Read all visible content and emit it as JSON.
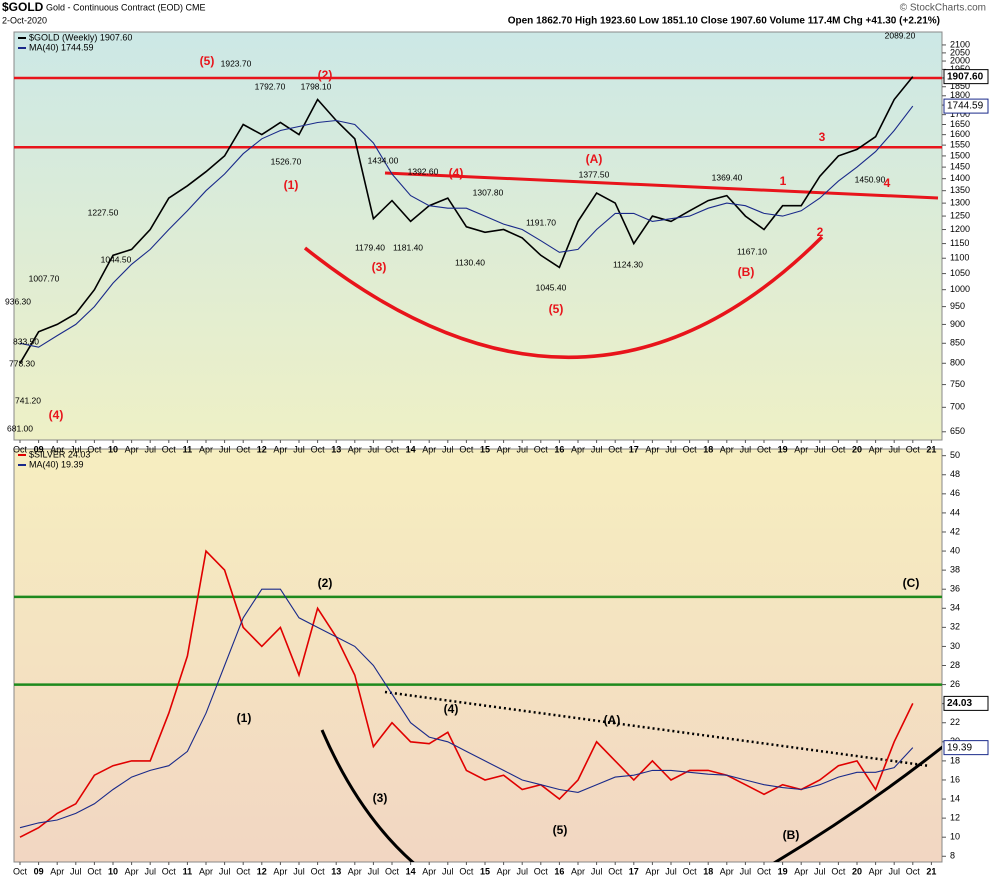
{
  "header": {
    "symbol": "$GOLD",
    "description": "Gold - Continuous Contract (EOD) CME",
    "date": "2-Oct-2020",
    "quote": "Open 1862.70 High 1923.60 Low 1851.10 Close 1907.60 Volume 117.4M Chg +41.30 (+2.21%)",
    "credit": "© StockCharts.com"
  },
  "chart_data": [
    {
      "type": "line",
      "log_scale": true,
      "categories": [
        "Oct",
        "09",
        "Apr",
        "Jul",
        "Oct",
        "10",
        "Apr",
        "Jul",
        "Oct",
        "11",
        "Apr",
        "Jul",
        "Oct",
        "12",
        "Apr",
        "Jul",
        "Oct",
        "13",
        "Apr",
        "Jul",
        "Oct",
        "14",
        "Apr",
        "Jul",
        "Oct",
        "15",
        "Apr",
        "Jul",
        "Oct",
        "16",
        "Apr",
        "Jul",
        "Oct",
        "17",
        "Apr",
        "Jul",
        "Oct",
        "18",
        "Apr",
        "Jul",
        "Oct",
        "19",
        "Apr",
        "Jul",
        "Oct",
        "20",
        "Apr",
        "Jul",
        "Oct",
        "21"
      ],
      "series": [
        {
          "name": "$GOLD (Weekly) 1907.60",
          "color": "#000000",
          "last_label": "1907.60",
          "values": [
            800,
            880,
            900,
            930,
            1000,
            1110,
            1130,
            1200,
            1320,
            1370,
            1430,
            1500,
            1650,
            1600,
            1660,
            1600,
            1780,
            1670,
            1580,
            1240,
            1310,
            1230,
            1290,
            1320,
            1210,
            1190,
            1200,
            1170,
            1110,
            1070,
            1230,
            1340,
            1300,
            1150,
            1250,
            1230,
            1270,
            1310,
            1330,
            1250,
            1200,
            1290,
            1290,
            1410,
            1500,
            1530,
            1590,
            1780,
            1907.6,
            null
          ]
        },
        {
          "name": "MA(40) 1744.59",
          "color": "#1a2a8a",
          "last_label": "1744.59",
          "values": [
            850,
            840,
            870,
            900,
            950,
            1020,
            1080,
            1130,
            1200,
            1270,
            1350,
            1420,
            1510,
            1580,
            1620,
            1640,
            1660,
            1670,
            1650,
            1560,
            1420,
            1330,
            1290,
            1280,
            1280,
            1250,
            1220,
            1200,
            1160,
            1120,
            1130,
            1200,
            1260,
            1260,
            1230,
            1240,
            1250,
            1280,
            1300,
            1290,
            1260,
            1250,
            1270,
            1320,
            1390,
            1450,
            1520,
            1620,
            1744.59,
            null
          ]
        }
      ],
      "ylim": [
        634,
        2184
      ],
      "yticks": [
        650,
        700,
        750,
        800,
        850,
        900,
        950,
        1000,
        1050,
        1100,
        1150,
        1200,
        1250,
        1300,
        1350,
        1400,
        1450,
        1500,
        1550,
        1600,
        1650,
        1700,
        1750,
        1800,
        1850,
        1900,
        1950,
        2000,
        2050,
        2100
      ],
      "levels": [
        {
          "value": 1900,
          "color": "#e8141b"
        },
        {
          "value": 1540,
          "color": "#e8141b"
        }
      ],
      "annotations": [
        "(5)",
        "1923.70",
        "1792.70",
        "(2)",
        "1798.10",
        "1526.70",
        "(1)",
        "1434.00",
        "1392.60",
        "(4)",
        "1179.40",
        "1181.40",
        "(3)",
        "1307.80",
        "1130.40",
        "1191.70",
        "1045.40",
        "(5)",
        "(A)",
        "1377.50",
        "1124.30",
        "1369.40",
        "1167.10",
        "(B)",
        "1",
        "2",
        "3",
        "4",
        "1450.90",
        "2089.20",
        "741.20",
        "681.00",
        "778.30",
        "833.50",
        "936.30",
        "1007.70",
        "1044.50",
        "1227.50",
        "(4)"
      ]
    },
    {
      "type": "line",
      "log_scale": false,
      "categories": [
        "Oct",
        "09",
        "Apr",
        "Jul",
        "Oct",
        "10",
        "Apr",
        "Jul",
        "Oct",
        "11",
        "Apr",
        "Jul",
        "Oct",
        "12",
        "Apr",
        "Jul",
        "Oct",
        "13",
        "Apr",
        "Jul",
        "Oct",
        "14",
        "Apr",
        "Jul",
        "Oct",
        "15",
        "Apr",
        "Jul",
        "Oct",
        "16",
        "Apr",
        "Jul",
        "Oct",
        "17",
        "Apr",
        "Jul",
        "Oct",
        "18",
        "Apr",
        "Jul",
        "Oct",
        "19",
        "Apr",
        "Jul",
        "Oct",
        "20",
        "Apr",
        "Jul",
        "Oct",
        "21"
      ],
      "series": [
        {
          "name": "$SILVER 24.03",
          "color": "#e00000",
          "last_label": "24.03",
          "values": [
            10,
            11,
            12.5,
            13.5,
            16.5,
            17.5,
            18,
            18,
            23,
            29,
            40,
            38,
            32,
            30,
            32,
            27,
            34,
            31,
            27,
            19.5,
            22,
            20,
            19.8,
            21,
            17,
            16,
            16.5,
            15,
            15.5,
            14,
            16,
            20,
            18,
            16,
            18,
            16,
            17,
            17,
            16.5,
            15.5,
            14.5,
            15.5,
            15,
            16,
            17.5,
            18,
            15,
            20,
            24.03,
            null
          ]
        },
        {
          "name": "MA(40) 19.39",
          "color": "#1a2a8a",
          "last_label": "19.39",
          "values": [
            11,
            11.5,
            11.8,
            12.5,
            13.5,
            15,
            16.3,
            17,
            17.5,
            19,
            23,
            28,
            33,
            36,
            36,
            33,
            32,
            31,
            30,
            28,
            25,
            22,
            20.5,
            20,
            19,
            18,
            17,
            16,
            15.5,
            15,
            14.7,
            15.5,
            16.3,
            16.5,
            17,
            17,
            16.8,
            16.6,
            16.5,
            16,
            15.5,
            15.2,
            15,
            15.5,
            16.3,
            16.8,
            16.8,
            17.3,
            19.39,
            null
          ]
        }
      ],
      "ylim": [
        7.4,
        50.7
      ],
      "yticks": [
        8,
        10,
        12,
        14,
        16,
        18,
        20,
        22,
        24,
        26,
        28,
        30,
        32,
        34,
        36,
        38,
        40,
        42,
        44,
        46,
        48,
        50
      ],
      "levels": [
        {
          "value": 35.2,
          "color": "#1e8a1e"
        },
        {
          "value": 26,
          "color": "#1e8a1e"
        }
      ],
      "annotations": [
        "(1)",
        "(2)",
        "(3)",
        "(4)",
        "(5)",
        "(A)",
        "(B)",
        "(C)"
      ]
    }
  ]
}
